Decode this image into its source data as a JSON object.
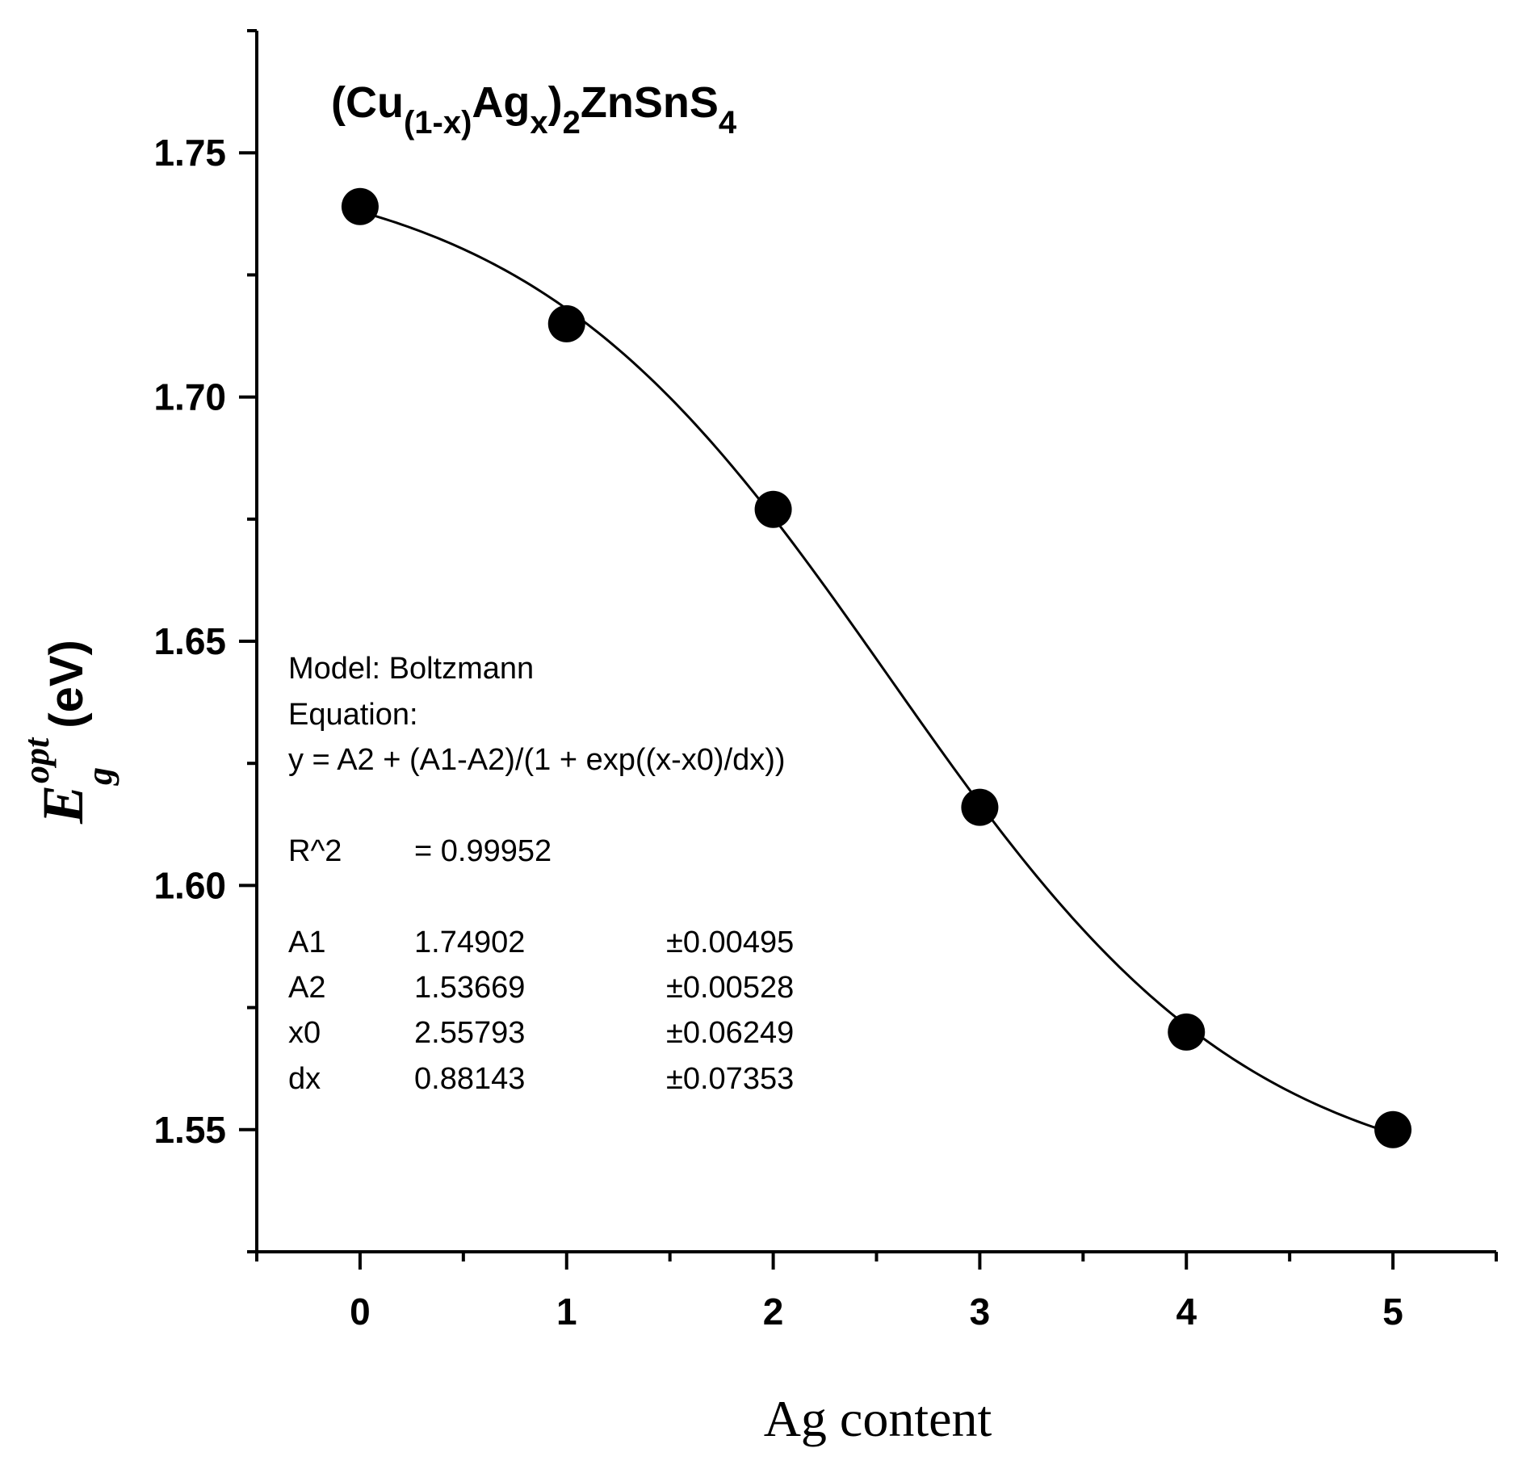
{
  "chart_data": {
    "type": "scatter",
    "title": {
      "parts": [
        "(Cu",
        "(1-x)",
        "Ag",
        "x",
        ")",
        "2",
        "ZnSnS",
        "4"
      ]
    },
    "xlabel": "Ag content",
    "ylabel": {
      "symbol": "E",
      "subscript": "g",
      "superscript": "opt",
      "unit": "(eV)"
    },
    "xlim": [
      -0.5,
      5.5
    ],
    "ylim": [
      1.525,
      1.775
    ],
    "x_ticks": [
      "0",
      "1",
      "2",
      "3",
      "4",
      "5"
    ],
    "x_tick_values": [
      0,
      1,
      2,
      3,
      4,
      5
    ],
    "y_ticks": [
      "1.55",
      "1.60",
      "1.65",
      "1.70",
      "1.75"
    ],
    "y_tick_values": [
      1.55,
      1.6,
      1.65,
      1.7,
      1.75
    ],
    "grid": false,
    "series": [
      {
        "marker": "filled-circle",
        "x": [
          0,
          1,
          2,
          3,
          4,
          5
        ],
        "y": [
          1.739,
          1.715,
          1.677,
          1.616,
          1.57,
          1.55
        ]
      }
    ],
    "fit": {
      "model": "Boltzmann",
      "A1": 1.74902,
      "A2": 1.53669,
      "x0": 2.55793,
      "dx": 0.88143
    },
    "annotation_lines": [
      [
        "Model: Boltzmann"
      ],
      [
        "Equation:"
      ],
      [
        "y = A2 + (A1-A2)/(1 + exp((x-x0)/dx))"
      ],
      [
        "R^2",
        "=  0.99952"
      ],
      [
        "A1",
        "1.74902",
        "±0.00495"
      ],
      [
        "A2",
        "1.53669",
        "±0.00528"
      ],
      [
        "x0",
        "2.55793",
        "±0.06249"
      ],
      [
        "dx",
        "0.88143",
        "±0.07353"
      ]
    ],
    "colors": {
      "line": "#000000",
      "marker": "#000000"
    }
  }
}
